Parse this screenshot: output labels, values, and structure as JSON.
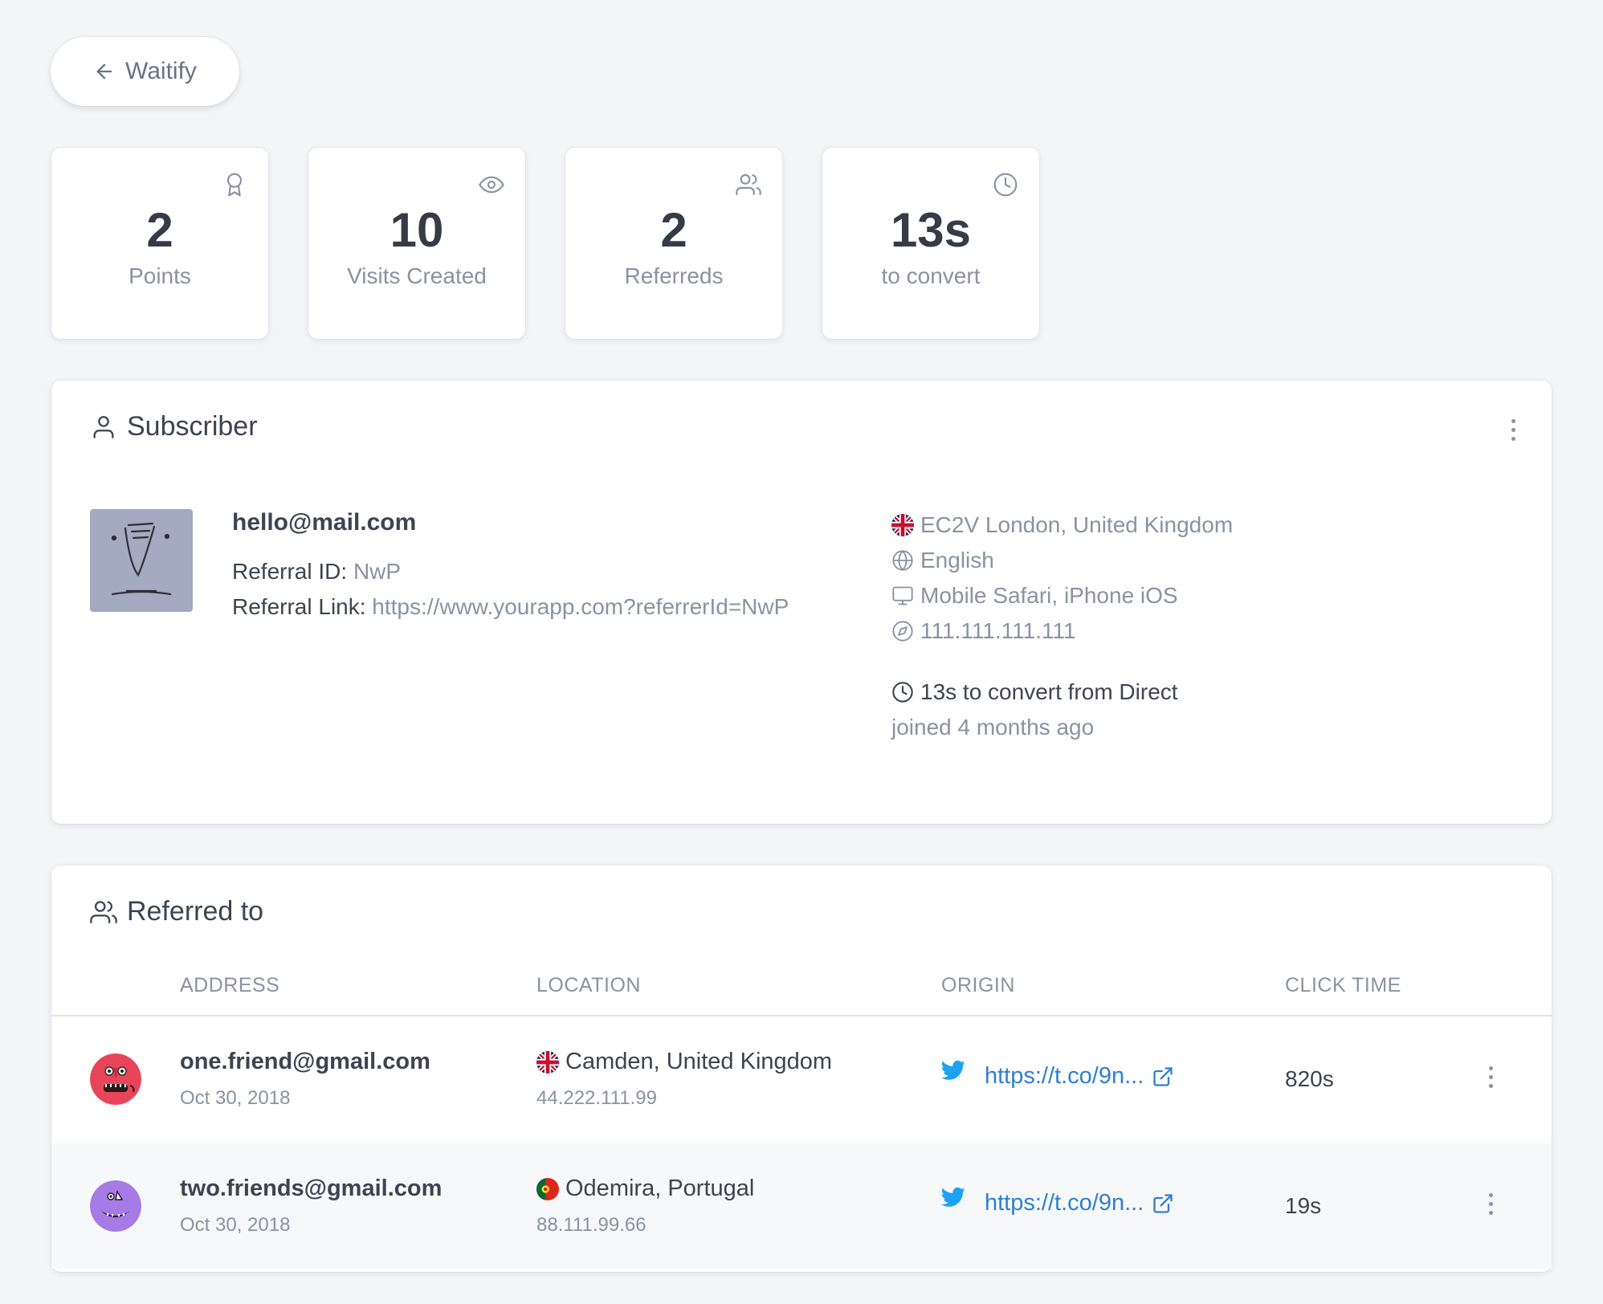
{
  "back_button": {
    "label": "Waitify",
    "icon": "arrow-left-icon"
  },
  "stats": [
    {
      "value": "2",
      "label": "Points",
      "icon": "award-icon"
    },
    {
      "value": "10",
      "label": "Visits Created",
      "icon": "eye-icon"
    },
    {
      "value": "2",
      "label": "Referreds",
      "icon": "users-icon"
    },
    {
      "value": "13s",
      "label": "to convert",
      "icon": "clock-icon"
    }
  ],
  "subscriber": {
    "title": "Subscriber",
    "email": "hello@mail.com",
    "referral_id_label": "Referral ID:",
    "referral_id": "NwP",
    "referral_link_label": "Referral Link:",
    "referral_link": "https://www.yourapp.com?referrerId=NwP",
    "location": "EC2V London, United Kingdom",
    "language": "English",
    "device": "Mobile Safari, iPhone iOS",
    "ip": "111.111.111.111",
    "convert_text": "13s to convert from Direct",
    "joined": "joined 4 months ago"
  },
  "referred": {
    "title": "Referred to",
    "columns": [
      "ADDRESS",
      "LOCATION",
      "ORIGIN",
      "CLICK TIME"
    ],
    "rows": [
      {
        "address": "one.friend@gmail.com",
        "date": "Oct 30, 2018",
        "location": "Camden, United Kingdom",
        "ip": "44.222.111.99",
        "origin_link": "https://t.co/9n...",
        "click_time": "820s",
        "flag": "uk",
        "avatar_color": "#e8455a"
      },
      {
        "address": "two.friends@gmail.com",
        "date": "Oct 30, 2018",
        "location": "Odemira, Portugal",
        "ip": "88.111.99.66",
        "origin_link": "https://t.co/9n...",
        "click_time": "19s",
        "flag": "pt",
        "avatar_color": "#a77be6"
      }
    ]
  },
  "colors": {
    "link": "#2f7fd1",
    "twitter": "#1da1f2",
    "muted": "#8b92a0"
  }
}
